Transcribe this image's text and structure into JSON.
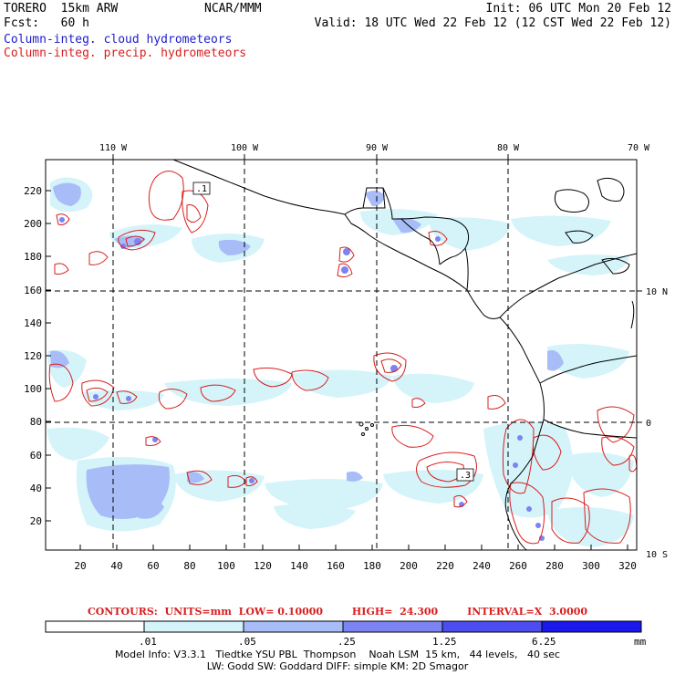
{
  "header": {
    "model": "TORERO  15km ARW",
    "org": "NCAR/MMM",
    "init": "Init: 06 UTC Mon 20 Feb 12",
    "fcst": "Fcst:   60 h",
    "valid": "Valid: 18 UTC Wed 22 Feb 12 (12 CST Wed 22 Feb 12)",
    "field_cloud": "Column-integ. cloud hydrometeors",
    "field_precip": "Column-integ. precip. hydrometeors"
  },
  "axes": {
    "x_ticks": [
      "20",
      "40",
      "60",
      "80",
      "100",
      "120",
      "140",
      "160",
      "180",
      "200",
      "220",
      "240",
      "260",
      "280",
      "300",
      "320"
    ],
    "y_ticks": [
      "20",
      "40",
      "60",
      "80",
      "100",
      "120",
      "140",
      "160",
      "180",
      "200",
      "220"
    ],
    "lon_labels": [
      "110 W",
      "100 W",
      "90 W",
      "80 W",
      "70 W"
    ],
    "lat_labels": [
      "10 N",
      "0",
      "10 S"
    ]
  },
  "contour_info": {
    "units": "CONTOURS:  UNITS=mm  LOW= 0.10000",
    "high": "HIGH=  24.300",
    "interval": "INTERVAL=X  3.0000"
  },
  "colorbar": {
    "ticks": [
      ".01",
      ".05",
      ".25",
      "1.25",
      "6.25"
    ],
    "unit": "mm",
    "colors": [
      "#ffffff",
      "#d4f4fa",
      "#a8bcf8",
      "#7b84f2",
      "#4d4cee",
      "#1c18ec"
    ]
  },
  "contour_labels": [
    ".1",
    ".3"
  ],
  "footer": {
    "line1": "Model Info: V3.3.1   Tiedtke YSU PBL  Thompson    Noah LSM  15 km,   44 levels,   40 sec",
    "line2": "LW: Godd SW: Goddard DIFF: simple KM: 2D Smagor"
  },
  "colors": {
    "cloud_light": "#d4f4fa",
    "cloud_mid": "#a8bcf8",
    "cloud_dark": "#7b84f2",
    "precip_contour": "#d81e1e",
    "header_blue": "#1c1ccc",
    "header_red": "#d81e1e"
  }
}
